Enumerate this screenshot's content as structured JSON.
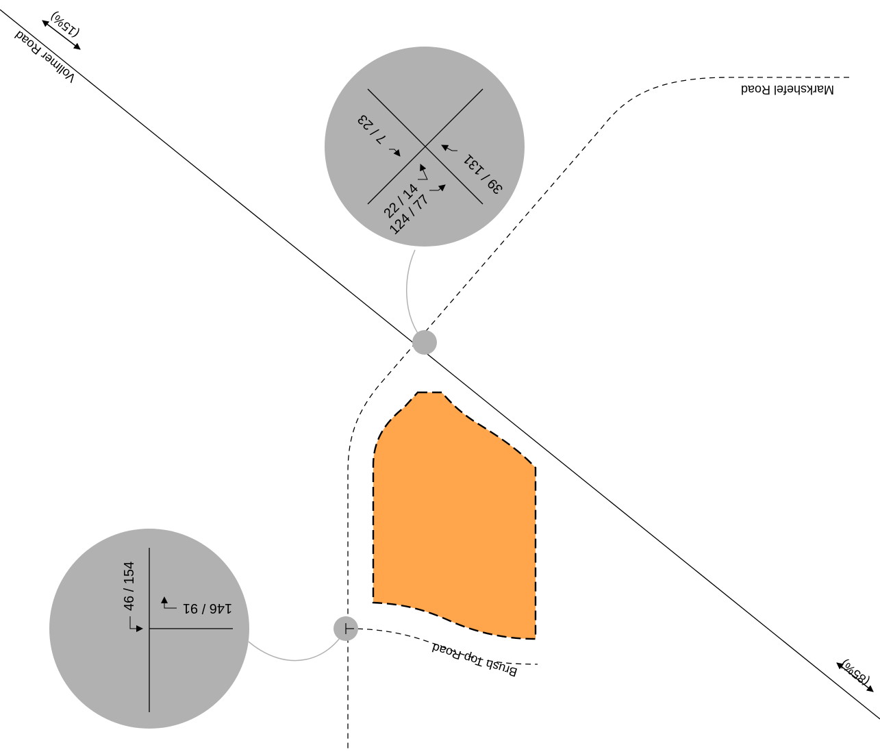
{
  "roads": {
    "vollmer": "Vollmer Road",
    "markshefel": "Markshefel Road",
    "brush_top": "Brush Top Road"
  },
  "distribution": {
    "left": "(15%)",
    "right": "(85%)"
  },
  "intersection_north": {
    "movement_a": "7 / 23",
    "movement_b": "39 / 131",
    "movement_c": "22 / 14",
    "movement_d": "124 / 77"
  },
  "intersection_south": {
    "movement_a": "46 / 154",
    "movement_b": "146 / 91"
  },
  "colors": {
    "site_fill": "#FFA64D",
    "bubble": "#B1B1B1",
    "connector": "#B1B1B1",
    "line": "#000000"
  }
}
